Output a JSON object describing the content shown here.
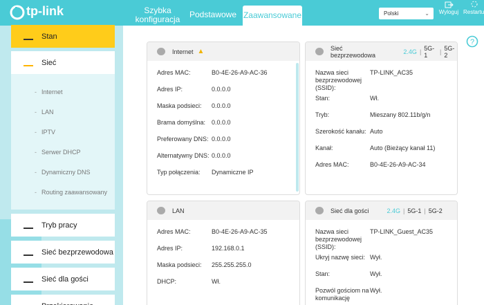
{
  "header": {
    "logo": "tp-link",
    "tabs": [
      "Szybka konfiguracja",
      "Podstawowe",
      "Zaawansowane"
    ],
    "language": "Polski",
    "logout": "Wyloguj",
    "reboot": "Restartuj"
  },
  "sidebar": {
    "items": [
      {
        "label": "Stan"
      },
      {
        "label": "Sieć",
        "subitems": [
          "Internet",
          "LAN",
          "IPTV",
          "Serwer DHCP",
          "Dynamiczny DNS",
          "Routing zaawansowany"
        ]
      },
      {
        "label": "Tryb pracy"
      },
      {
        "label": "Sieć bezprzewodowa"
      },
      {
        "label": "Sieć dla gości"
      },
      {
        "label": "Przekierowanie"
      }
    ]
  },
  "panels": [
    {
      "title": "Internet",
      "rows": [
        [
          "Adres MAC:",
          "B0-4E-26-A9-AC-36"
        ],
        [
          "Adres IP:",
          "0.0.0.0"
        ],
        [
          "Maska podsieci:",
          "0.0.0.0"
        ],
        [
          "Brama domyślna:",
          "0.0.0.0"
        ],
        [
          "Preferowany DNS:",
          "0.0.0.0"
        ],
        [
          "Alternatywny DNS:",
          "0.0.0.0"
        ],
        [
          "Typ połączenia:",
          "Dynamiczne IP"
        ]
      ]
    },
    {
      "title": "Sieć bezprzewodowa",
      "bands": [
        "2.4G",
        "5G-1",
        "5G-2"
      ],
      "rows": [
        [
          "Nazwa sieci bezprzewodowej (SSID):",
          "TP-LINK_AC35"
        ],
        [
          "Stan:",
          "Wł."
        ],
        [
          "Tryb:",
          "Mieszany 802.11b/g/n"
        ],
        [
          "Szerokość kanału:",
          "Auto"
        ],
        [
          "Kanał:",
          "Auto (Bieżący kanał 11)"
        ],
        [
          "Adres MAC:",
          "B0-4E-26-A9-AC-34"
        ]
      ]
    },
    {
      "title": "LAN",
      "rows": [
        [
          "Adres MAC:",
          "B0-4E-26-A9-AC-35"
        ],
        [
          "Adres IP:",
          "192.168.0.1"
        ],
        [
          "Maska podsieci:",
          "255.255.255.0"
        ],
        [
          "DHCP:",
          "Wł."
        ]
      ]
    },
    {
      "title": "Sieć dla gości",
      "bands": [
        "2.4G",
        "5G-1",
        "5G-2"
      ],
      "rows": [
        [
          "Nazwa sieci bezprzewodowej (SSID):",
          "TP-LINK_Guest_AC35"
        ],
        [
          "Ukryj nazwę sieci:",
          "Wył."
        ],
        [
          "Stan:",
          "Wył."
        ],
        [
          "Pozwól gościom na komunikację",
          "Wył."
        ]
      ]
    }
  ]
}
